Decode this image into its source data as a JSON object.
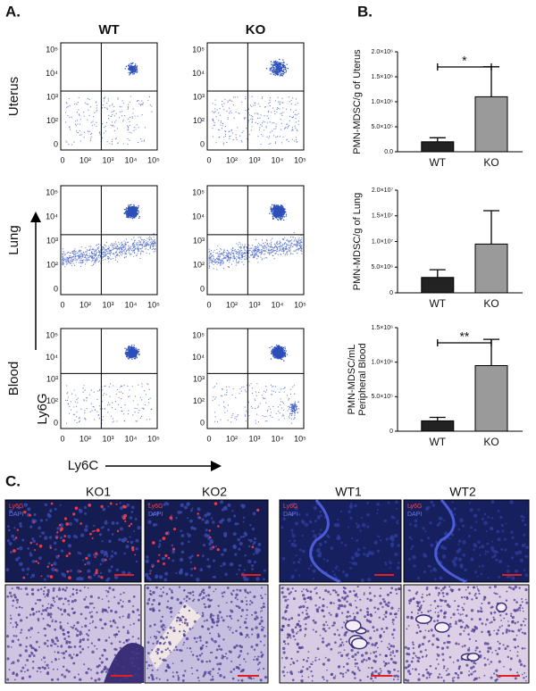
{
  "panel_a": {
    "label": "A.",
    "columns": [
      "WT",
      "KO"
    ],
    "rows": [
      "Uterus",
      "Lung",
      "Blood"
    ],
    "y_axis_label": "Ly6G",
    "x_axis_label": "Ly6C",
    "y_tick_labels": [
      "10⁵",
      "10⁴",
      "10³",
      "10²",
      "0"
    ],
    "x_tick_labels": [
      "0",
      "10²",
      "10³",
      "10⁴",
      "10⁵"
    ]
  },
  "panel_b_label": "B.",
  "chart_data": [
    {
      "type": "bar",
      "y_label": [
        "PMN-MDSC/g of Uterus"
      ],
      "categories": [
        "WT",
        "KO"
      ],
      "values": [
        200000,
        1100000
      ],
      "errors": [
        80000,
        600000
      ],
      "colors": [
        "#222222",
        "#9a9a9a"
      ],
      "ylim": [
        0,
        2000000
      ],
      "yticks": [
        {
          "value": 0,
          "label": "0.0"
        },
        {
          "value": 500000,
          "label": "5.0×10⁵"
        },
        {
          "value": 1000000,
          "label": "1.0×10⁶"
        },
        {
          "value": 1500000,
          "label": "1.5×10⁶"
        },
        {
          "value": 2000000,
          "label": "2.0×10⁶"
        }
      ],
      "significance": "*"
    },
    {
      "type": "bar",
      "y_label": [
        "PMN-MDSC/g of Lung"
      ],
      "categories": [
        "WT",
        "KO"
      ],
      "values": [
        3000000,
        9500000
      ],
      "errors": [
        1500000,
        6500000
      ],
      "colors": [
        "#222222",
        "#9a9a9a"
      ],
      "ylim": [
        0,
        20000000
      ],
      "yticks": [
        0,
        {
          "value": 5000000,
          "label": "5.0×10⁶"
        },
        {
          "value": 10000000,
          "label": "1.0×10⁷"
        },
        {
          "value": 15000000,
          "label": "1.5×10⁷"
        },
        {
          "value": 20000000,
          "label": "2.0×10⁷"
        }
      ]
    },
    {
      "type": "bar",
      "y_label": [
        "PMN-MDSC/mL",
        "Peripheral Blood"
      ],
      "categories": [
        "WT",
        "KO"
      ],
      "values": [
        150000,
        950000
      ],
      "errors": [
        50000,
        380000
      ],
      "colors": [
        "#222222",
        "#9a9a9a"
      ],
      "ylim": [
        0,
        1500000
      ],
      "yticks": [
        0,
        {
          "value": 500000,
          "label": "5.0×10⁵"
        },
        {
          "value": 1000000,
          "label": "1.0×10⁶"
        },
        {
          "value": 1500000,
          "label": "1.5×10⁶"
        }
      ],
      "significance": "**"
    }
  ],
  "panel_c": {
    "label": "C.",
    "images": [
      "KO1",
      "KO2",
      "WT1",
      "WT2"
    ],
    "stain_labels": [
      "Ly6G",
      "DAPI"
    ]
  }
}
